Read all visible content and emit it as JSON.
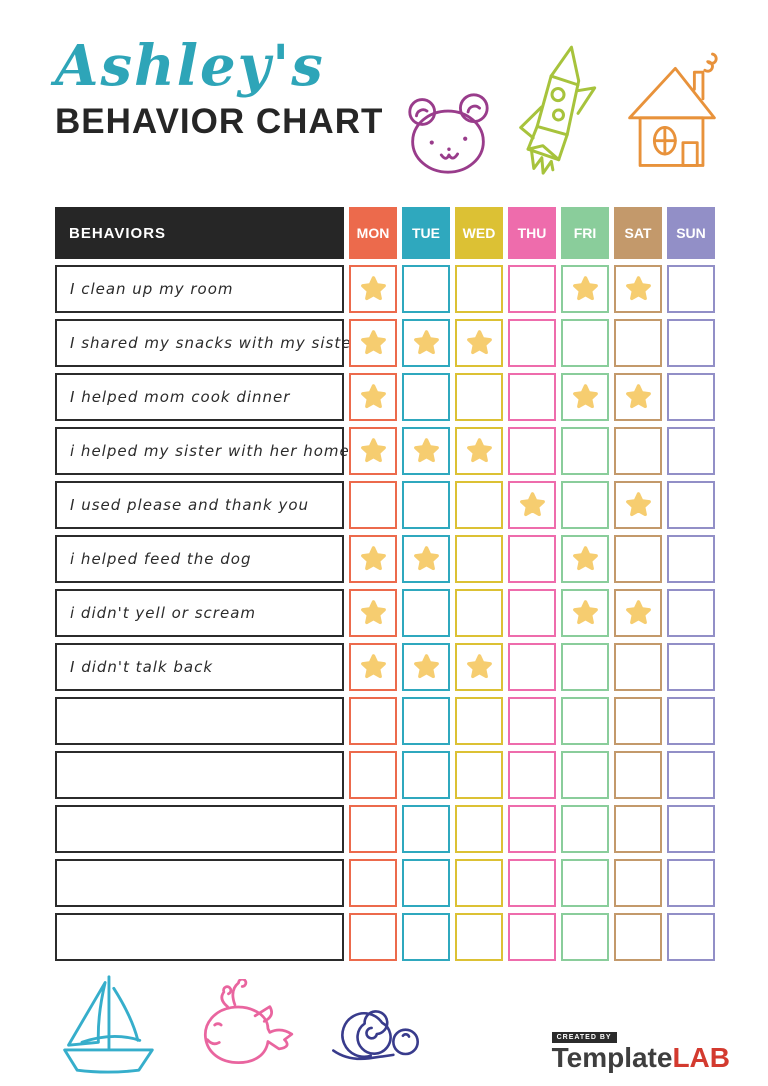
{
  "header": {
    "owner_name": "Ashley's",
    "title": "BEHAVIOR CHART"
  },
  "table": {
    "behaviors_header": "BEHAVIORS",
    "days": [
      {
        "label": "MON",
        "color": "#EC6A4C"
      },
      {
        "label": "TUE",
        "color": "#2FA8BE"
      },
      {
        "label": "WED",
        "color": "#DCC134"
      },
      {
        "label": "THU",
        "color": "#EE6CAC"
      },
      {
        "label": "FRI",
        "color": "#8ACD9B"
      },
      {
        "label": "SAT",
        "color": "#C3996B"
      },
      {
        "label": "SUN",
        "color": "#928FC7"
      }
    ],
    "star_color": "#F6CD70",
    "rows": [
      {
        "behavior": "I clean up my room",
        "stars": [
          1,
          0,
          0,
          0,
          1,
          1,
          0
        ]
      },
      {
        "behavior": "I shared my snacks with my sister",
        "stars": [
          1,
          1,
          1,
          0,
          0,
          0,
          0
        ]
      },
      {
        "behavior": "I helped mom cook dinner",
        "stars": [
          1,
          0,
          0,
          0,
          1,
          1,
          0
        ]
      },
      {
        "behavior": "i helped my sister with her homework",
        "stars": [
          1,
          1,
          1,
          0,
          0,
          0,
          0
        ]
      },
      {
        "behavior": "I used please and thank you",
        "stars": [
          0,
          0,
          0,
          1,
          0,
          1,
          0
        ]
      },
      {
        "behavior": "i helped feed the dog",
        "stars": [
          1,
          1,
          0,
          0,
          1,
          0,
          0
        ]
      },
      {
        "behavior": "i didn't yell or scream",
        "stars": [
          1,
          0,
          0,
          0,
          1,
          1,
          0
        ]
      },
      {
        "behavior": "I didn't talk back",
        "stars": [
          1,
          1,
          1,
          0,
          0,
          0,
          0
        ]
      },
      {
        "behavior": "",
        "stars": [
          0,
          0,
          0,
          0,
          0,
          0,
          0
        ]
      },
      {
        "behavior": "",
        "stars": [
          0,
          0,
          0,
          0,
          0,
          0,
          0
        ]
      },
      {
        "behavior": "",
        "stars": [
          0,
          0,
          0,
          0,
          0,
          0,
          0
        ]
      },
      {
        "behavior": "",
        "stars": [
          0,
          0,
          0,
          0,
          0,
          0,
          0
        ]
      },
      {
        "behavior": "",
        "stars": [
          0,
          0,
          0,
          0,
          0,
          0,
          0
        ]
      }
    ]
  },
  "decorations": {
    "top_icons": [
      "bear-doodle",
      "rocket-doodle",
      "house-doodle"
    ],
    "bottom_icons": [
      "sailboat-doodle",
      "whale-doodle",
      "snail-doodle"
    ],
    "colors": {
      "bear": "#993C8B",
      "rocket": "#A7C33C",
      "house": "#E8923B",
      "sailboat": "#36AECB",
      "whale": "#E9659F",
      "snail": "#383B8C",
      "title_script": "#2EA5B8"
    }
  },
  "footer": {
    "created_by": "CREATED BY",
    "brand_name": "Template",
    "brand_suffix": "LAB"
  }
}
